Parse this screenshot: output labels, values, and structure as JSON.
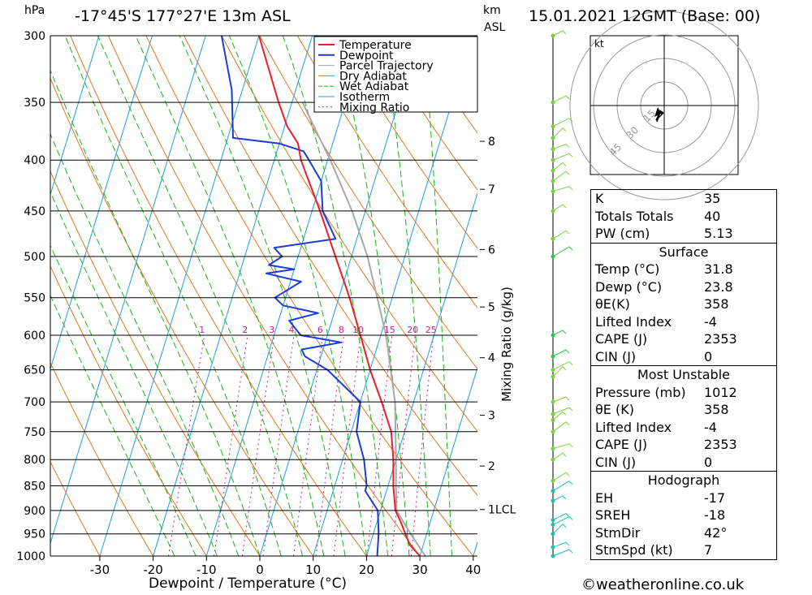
{
  "header": {
    "location": "-17°45'S  177°27'E  13m  ASL",
    "datetime": "15.01.2021  12GMT  (Base: 00)",
    "pressure_unit": "hPa",
    "km_label": "km",
    "asl_label": "ASL"
  },
  "footer": {
    "credit": "©weatheronline.co.uk"
  },
  "chart_data": {
    "type": "skew-t",
    "xlabel": "Dewpoint / Temperature (°C)",
    "ylabel_right": "Mixing Ratio (g/kg)",
    "pressure_levels": [
      300,
      350,
      400,
      450,
      500,
      550,
      600,
      650,
      700,
      750,
      800,
      850,
      900,
      950,
      1000
    ],
    "temp_ticks": [
      -30,
      -20,
      -10,
      0,
      10,
      20,
      30,
      40
    ],
    "km_ticks": [
      {
        "label": "8",
        "p": 383
      },
      {
        "label": "7",
        "p": 428
      },
      {
        "label": "6",
        "p": 492
      },
      {
        "label": "5",
        "p": 562
      },
      {
        "label": "4",
        "p": 632
      },
      {
        "label": "3",
        "p": 722
      },
      {
        "label": "2",
        "p": 812
      },
      {
        "label": "1LCL",
        "p": 898
      }
    ],
    "mixing_ratio_labels": [
      "1",
      "2",
      "3",
      "4",
      "6",
      "8",
      "10",
      "15",
      "20",
      "25"
    ],
    "mixing_ratio_values": [
      1,
      2,
      3,
      4,
      6,
      8,
      10,
      15,
      20,
      25
    ],
    "legend": [
      "Temperature",
      "Dewpoint",
      "Parcel Trajectory",
      "Dry Adiabat",
      "Wet Adiabat",
      "Isotherm",
      "Mixing Ratio"
    ],
    "colors": {
      "temperature": "#e8202a",
      "dewpoint": "#1a3ed4",
      "parcel": "#a9a9a9",
      "dry_adiabat": "#e07820",
      "wet_adiabat": "#18b418",
      "isotherm": "#1e9ee0",
      "mixing_ratio": "#d0208a"
    },
    "temperature": [
      {
        "p": 1012,
        "t": 31.8
      },
      {
        "p": 1000,
        "t": 30.0
      },
      {
        "p": 975,
        "t": 27.5
      },
      {
        "p": 950,
        "t": 26.0
      },
      {
        "p": 925,
        "t": 24.5
      },
      {
        "p": 900,
        "t": 22.8
      },
      {
        "p": 850,
        "t": 21.0
      },
      {
        "p": 800,
        "t": 19.5
      },
      {
        "p": 750,
        "t": 17.5
      },
      {
        "p": 700,
        "t": 14.0
      },
      {
        "p": 650,
        "t": 10.0
      },
      {
        "p": 600,
        "t": 6.2
      },
      {
        "p": 550,
        "t": 2.0
      },
      {
        "p": 500,
        "t": -3.0
      },
      {
        "p": 450,
        "t": -8.5
      },
      {
        "p": 400,
        "t": -15.0
      },
      {
        "p": 385,
        "t": -16.5
      },
      {
        "p": 370,
        "t": -19.5
      },
      {
        "p": 350,
        "t": -22.5
      },
      {
        "p": 300,
        "t": -30.0
      }
    ],
    "dewpoint": [
      {
        "p": 1012,
        "t": 23.8
      },
      {
        "p": 1000,
        "t": 22.0
      },
      {
        "p": 950,
        "t": 21.0
      },
      {
        "p": 900,
        "t": 19.5
      },
      {
        "p": 860,
        "t": 16.0
      },
      {
        "p": 850,
        "t": 16.0
      },
      {
        "p": 800,
        "t": 14.0
      },
      {
        "p": 750,
        "t": 11.0
      },
      {
        "p": 700,
        "t": 10.0
      },
      {
        "p": 650,
        "t": 2.0
      },
      {
        "p": 630,
        "t": -3.0
      },
      {
        "p": 620,
        "t": -4.0
      },
      {
        "p": 610,
        "t": 3.0
      },
      {
        "p": 600,
        "t": -5.0
      },
      {
        "p": 580,
        "t": -8.0
      },
      {
        "p": 570,
        "t": -3.0
      },
      {
        "p": 560,
        "t": -10.0
      },
      {
        "p": 550,
        "t": -12.0
      },
      {
        "p": 530,
        "t": -8.0
      },
      {
        "p": 520,
        "t": -15.0
      },
      {
        "p": 515,
        "t": -10.0
      },
      {
        "p": 510,
        "t": -15.0
      },
      {
        "p": 500,
        "t": -13.0
      },
      {
        "p": 490,
        "t": -15.0
      },
      {
        "p": 480,
        "t": -4.0
      },
      {
        "p": 450,
        "t": -8.0
      },
      {
        "p": 420,
        "t": -10.0
      },
      {
        "p": 400,
        "t": -13.5
      },
      {
        "p": 392,
        "t": -15.0
      },
      {
        "p": 385,
        "t": -20.0
      },
      {
        "p": 380,
        "t": -29.0
      },
      {
        "p": 340,
        "t": -32.0
      },
      {
        "p": 300,
        "t": -37.0
      }
    ],
    "parcel": [
      {
        "p": 1012,
        "t": 31.8
      },
      {
        "p": 950,
        "t": 27.0
      },
      {
        "p": 900,
        "t": 23.0
      },
      {
        "p": 850,
        "t": 21.5
      },
      {
        "p": 800,
        "t": 20.0
      },
      {
        "p": 700,
        "t": 16.5
      },
      {
        "p": 600,
        "t": 11.0
      },
      {
        "p": 500,
        "t": 3.0
      },
      {
        "p": 450,
        "t": -2.5
      },
      {
        "p": 400,
        "t": -9.5
      },
      {
        "p": 370,
        "t": -14.5
      },
      {
        "p": 350,
        "t": -18.0
      }
    ],
    "hodograph_unit": "kt",
    "hodograph_ring_labels": [
      "15",
      "30",
      "45"
    ],
    "hodograph_ring_speeds": [
      15,
      30,
      45
    ],
    "indices": {
      "k": {
        "label": "K",
        "value": "35"
      },
      "tt": {
        "label": "Totals Totals",
        "value": "40"
      },
      "pw": {
        "label": "PW (cm)",
        "value": "5.13"
      },
      "surface_title": "Surface",
      "s_temp": {
        "label": "Temp (°C)",
        "value": "31.8"
      },
      "s_dewp": {
        "label": "Dewp (°C)",
        "value": "23.8"
      },
      "s_theta": {
        "label": "θE(K)",
        "value": "358"
      },
      "s_li": {
        "label": "Lifted Index",
        "value": "-4"
      },
      "s_cape": {
        "label": "CAPE (J)",
        "value": "2353"
      },
      "s_cin": {
        "label": "CIN (J)",
        "value": "0"
      },
      "mu_title": "Most Unstable",
      "mu_pres": {
        "label": "Pressure (mb)",
        "value": "1012"
      },
      "mu_theta": {
        "label": "θE (K)",
        "value": "358"
      },
      "mu_li": {
        "label": "Lifted Index",
        "value": "-4"
      },
      "mu_cape": {
        "label": "CAPE (J)",
        "value": "2353"
      },
      "mu_cin": {
        "label": "CIN (J)",
        "value": "0"
      },
      "hodo_title": "Hodograph",
      "eh": {
        "label": "EH",
        "value": "-17"
      },
      "sreh": {
        "label": "SREH",
        "value": "-18"
      },
      "stmdir": {
        "label": "StmDir",
        "value": "42°"
      },
      "stmspd": {
        "label": "StmSpd (kt)",
        "value": "7"
      }
    }
  }
}
